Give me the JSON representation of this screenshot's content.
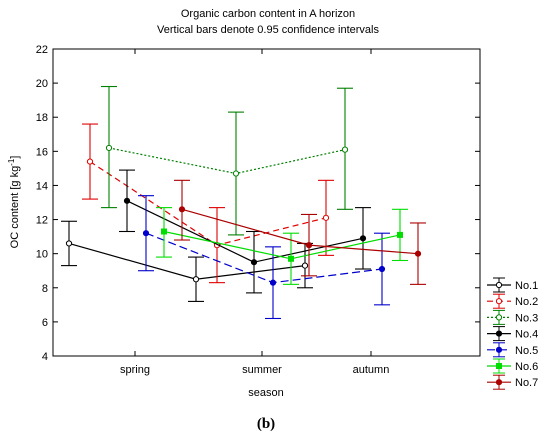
{
  "chart_data": {
    "type": "line",
    "title": "Organic carbon content in A horizon",
    "subtitle": "Vertical bars denote 0.95 confidence intervals",
    "xlabel": "season",
    "ylabel": "OC content [g kg",
    "ylabel_sup": "-1",
    "ylabel_end": "]",
    "categories": [
      "spring",
      "summer",
      "autumn"
    ],
    "ylim": [
      4,
      22
    ],
    "yticks": [
      4,
      6,
      8,
      10,
      12,
      14,
      16,
      18,
      20,
      22
    ],
    "grid": false,
    "legend_position": "right",
    "series": [
      {
        "name": "No.1",
        "color": "#000000",
        "dash": "",
        "marker": "circle-open",
        "values": [
          10.6,
          8.5,
          9.3
        ],
        "lower": [
          9.3,
          7.2,
          8.0
        ],
        "upper": [
          11.9,
          9.8,
          10.6
        ]
      },
      {
        "name": "No.2",
        "color": "#e00000",
        "dash": "6,4",
        "marker": "circle-open",
        "values": [
          15.4,
          10.5,
          12.1
        ],
        "lower": [
          13.2,
          8.3,
          9.9
        ],
        "upper": [
          17.6,
          12.7,
          14.3
        ]
      },
      {
        "name": "No.3",
        "color": "#008000",
        "dash": "2,2",
        "marker": "circle-open",
        "values": [
          16.2,
          14.7,
          16.1
        ],
        "lower": [
          12.7,
          11.1,
          12.6
        ],
        "upper": [
          19.8,
          18.3,
          19.7
        ]
      },
      {
        "name": "No.4",
        "color": "#000000",
        "dash": "",
        "marker": "circle",
        "values": [
          13.1,
          9.5,
          10.9
        ],
        "lower": [
          11.3,
          7.7,
          9.1
        ],
        "upper": [
          14.9,
          11.3,
          12.7
        ]
      },
      {
        "name": "No.5",
        "color": "#0000cc",
        "dash": "8,4",
        "marker": "circle",
        "values": [
          11.2,
          8.3,
          9.1
        ],
        "lower": [
          9.0,
          6.2,
          7.0
        ],
        "upper": [
          13.4,
          10.4,
          11.2
        ]
      },
      {
        "name": "No.6",
        "color": "#00dd00",
        "dash": "",
        "marker": "square",
        "values": [
          11.3,
          9.7,
          11.1
        ],
        "lower": [
          9.8,
          8.2,
          9.6
        ],
        "upper": [
          12.7,
          11.2,
          12.6
        ]
      },
      {
        "name": "No.7",
        "color": "#aa0000",
        "dash": "",
        "marker": "circle",
        "values": [
          12.6,
          10.5,
          10.0
        ],
        "lower": [
          10.8,
          8.7,
          8.2
        ],
        "upper": [
          14.3,
          12.3,
          11.8
        ]
      }
    ]
  },
  "caption": "(b)"
}
